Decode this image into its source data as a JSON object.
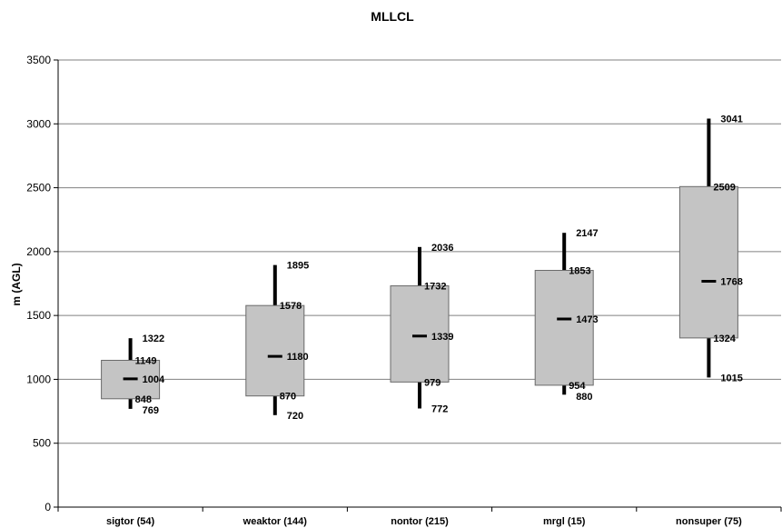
{
  "chart_data": {
    "type": "boxplot",
    "title": "MLLCL",
    "ylabel": "m (AGL)",
    "xlabel": "",
    "ylim": [
      0,
      3500
    ],
    "yticks": [
      0,
      500,
      1000,
      1500,
      2000,
      2500,
      3000,
      3500
    ],
    "grid": true,
    "colors": {
      "box": "#c4c4c4",
      "whisker": "#000000",
      "grid": "#808080"
    },
    "categories": [
      "sigtor (54)",
      "weaktor (144)",
      "nontor (215)",
      "mrgl (15)",
      "nonsuper (75)"
    ],
    "boxes": [
      {
        "category": "sigtor (54)",
        "low": 769,
        "q1": 848,
        "median": 1004,
        "q3": 1149,
        "high": 1322
      },
      {
        "category": "weaktor (144)",
        "low": 720,
        "q1": 870,
        "median": 1180,
        "q3": 1578,
        "high": 1895
      },
      {
        "category": "nontor (215)",
        "low": 772,
        "q1": 979,
        "median": 1339,
        "q3": 1732,
        "high": 2036
      },
      {
        "category": "mrgl (15)",
        "low": 880,
        "q1": 954,
        "median": 1473,
        "q3": 1853,
        "high": 2147
      },
      {
        "category": "nonsuper (75)",
        "low": 1015,
        "q1": 1324,
        "median": 1768,
        "q3": 2509,
        "high": 3041
      }
    ]
  }
}
